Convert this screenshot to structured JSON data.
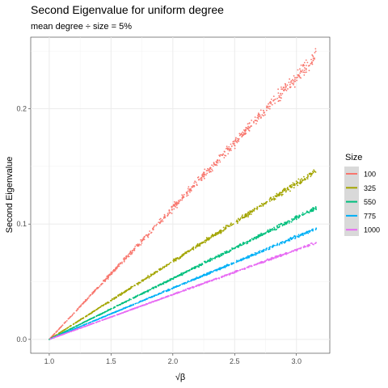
{
  "chart_data": {
    "type": "scatter",
    "title": "Second Eigenvalue for uniform degree",
    "subtitle": "mean degree ÷ size = 5%",
    "xlabel": "√β",
    "ylabel": "Second Eigenvalue",
    "xlim": [
      0.85,
      3.27
    ],
    "ylim": [
      -0.012,
      0.262
    ],
    "x_ticks": [
      1.0,
      1.5,
      2.0,
      2.5,
      3.0
    ],
    "x_tick_labels": [
      "1.0",
      "1.5",
      "2.0",
      "2.5",
      "3.0"
    ],
    "y_ticks": [
      0.0,
      0.1,
      0.2
    ],
    "y_tick_labels": [
      "0.0",
      "0.1",
      "0.2"
    ],
    "grid": true,
    "legend": {
      "title": "Size",
      "position": "right"
    },
    "series": [
      {
        "name": "100",
        "color": "#F8766D",
        "x": [
          1.0,
          3.16
        ],
        "y": [
          0.0,
          0.246
        ],
        "spread": 0.0045
      },
      {
        "name": "325",
        "color": "#A3A500",
        "x": [
          1.0,
          3.16
        ],
        "y": [
          0.0,
          0.146
        ],
        "spread": 0.0018
      },
      {
        "name": "550",
        "color": "#00BF7D",
        "x": [
          1.0,
          3.16
        ],
        "y": [
          0.0,
          0.114
        ],
        "spread": 0.0012
      },
      {
        "name": "775",
        "color": "#00B0F6",
        "x": [
          1.0,
          3.16
        ],
        "y": [
          0.0,
          0.096
        ],
        "spread": 0.0009
      },
      {
        "name": "1000",
        "color": "#E76BF3",
        "x": [
          1.0,
          3.16
        ],
        "y": [
          0.0,
          0.084
        ],
        "spread": 0.0007
      }
    ]
  }
}
